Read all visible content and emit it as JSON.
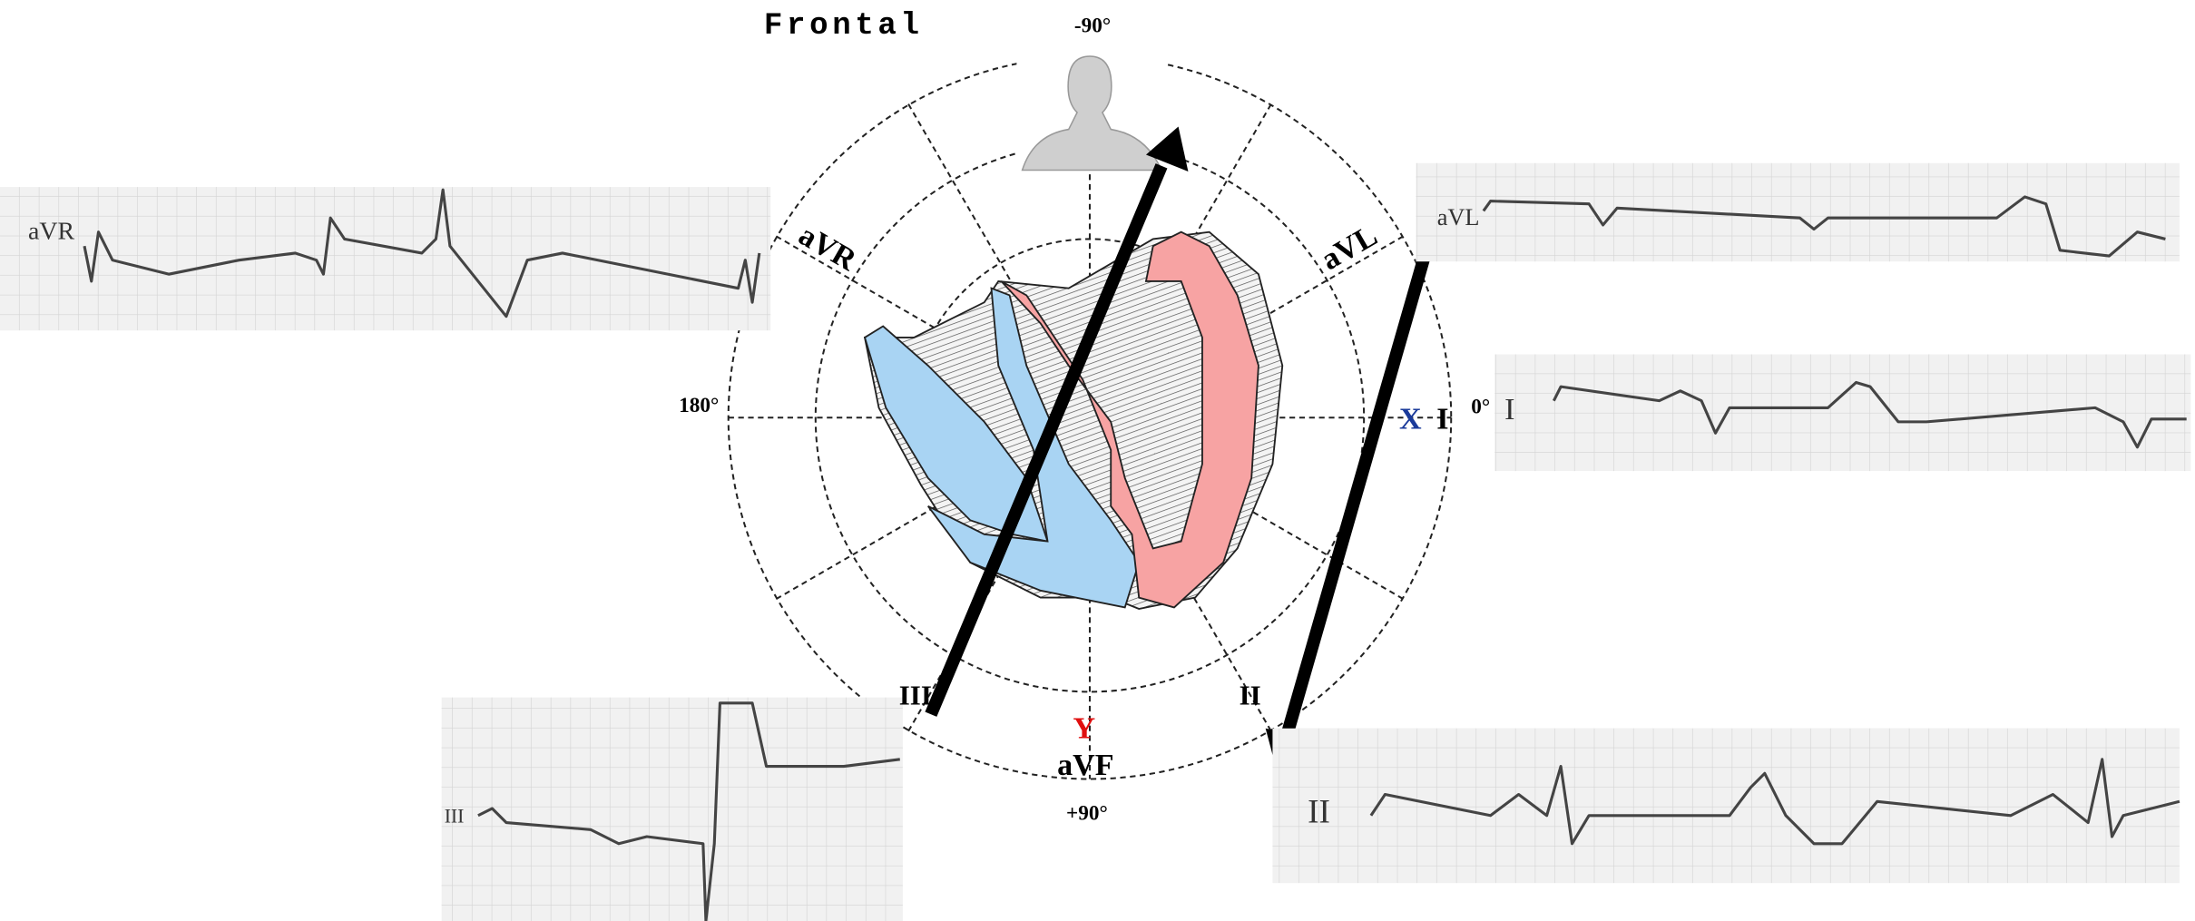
{
  "header": {
    "title": "Frontal"
  },
  "angles": {
    "top": "-90°",
    "bottom": "+90°",
    "left": "180°",
    "right": "0°"
  },
  "leads": {
    "avr": "aVR",
    "avl": "aVL",
    "i": "I",
    "ii": "II",
    "iii": "III",
    "avf": "aVF"
  },
  "axes": {
    "x": "X",
    "y": "Y"
  },
  "strips": [
    {
      "label": "aVR"
    },
    {
      "label": "aVL"
    },
    {
      "label": "I"
    },
    {
      "label": "III"
    },
    {
      "label": "II"
    }
  ]
}
